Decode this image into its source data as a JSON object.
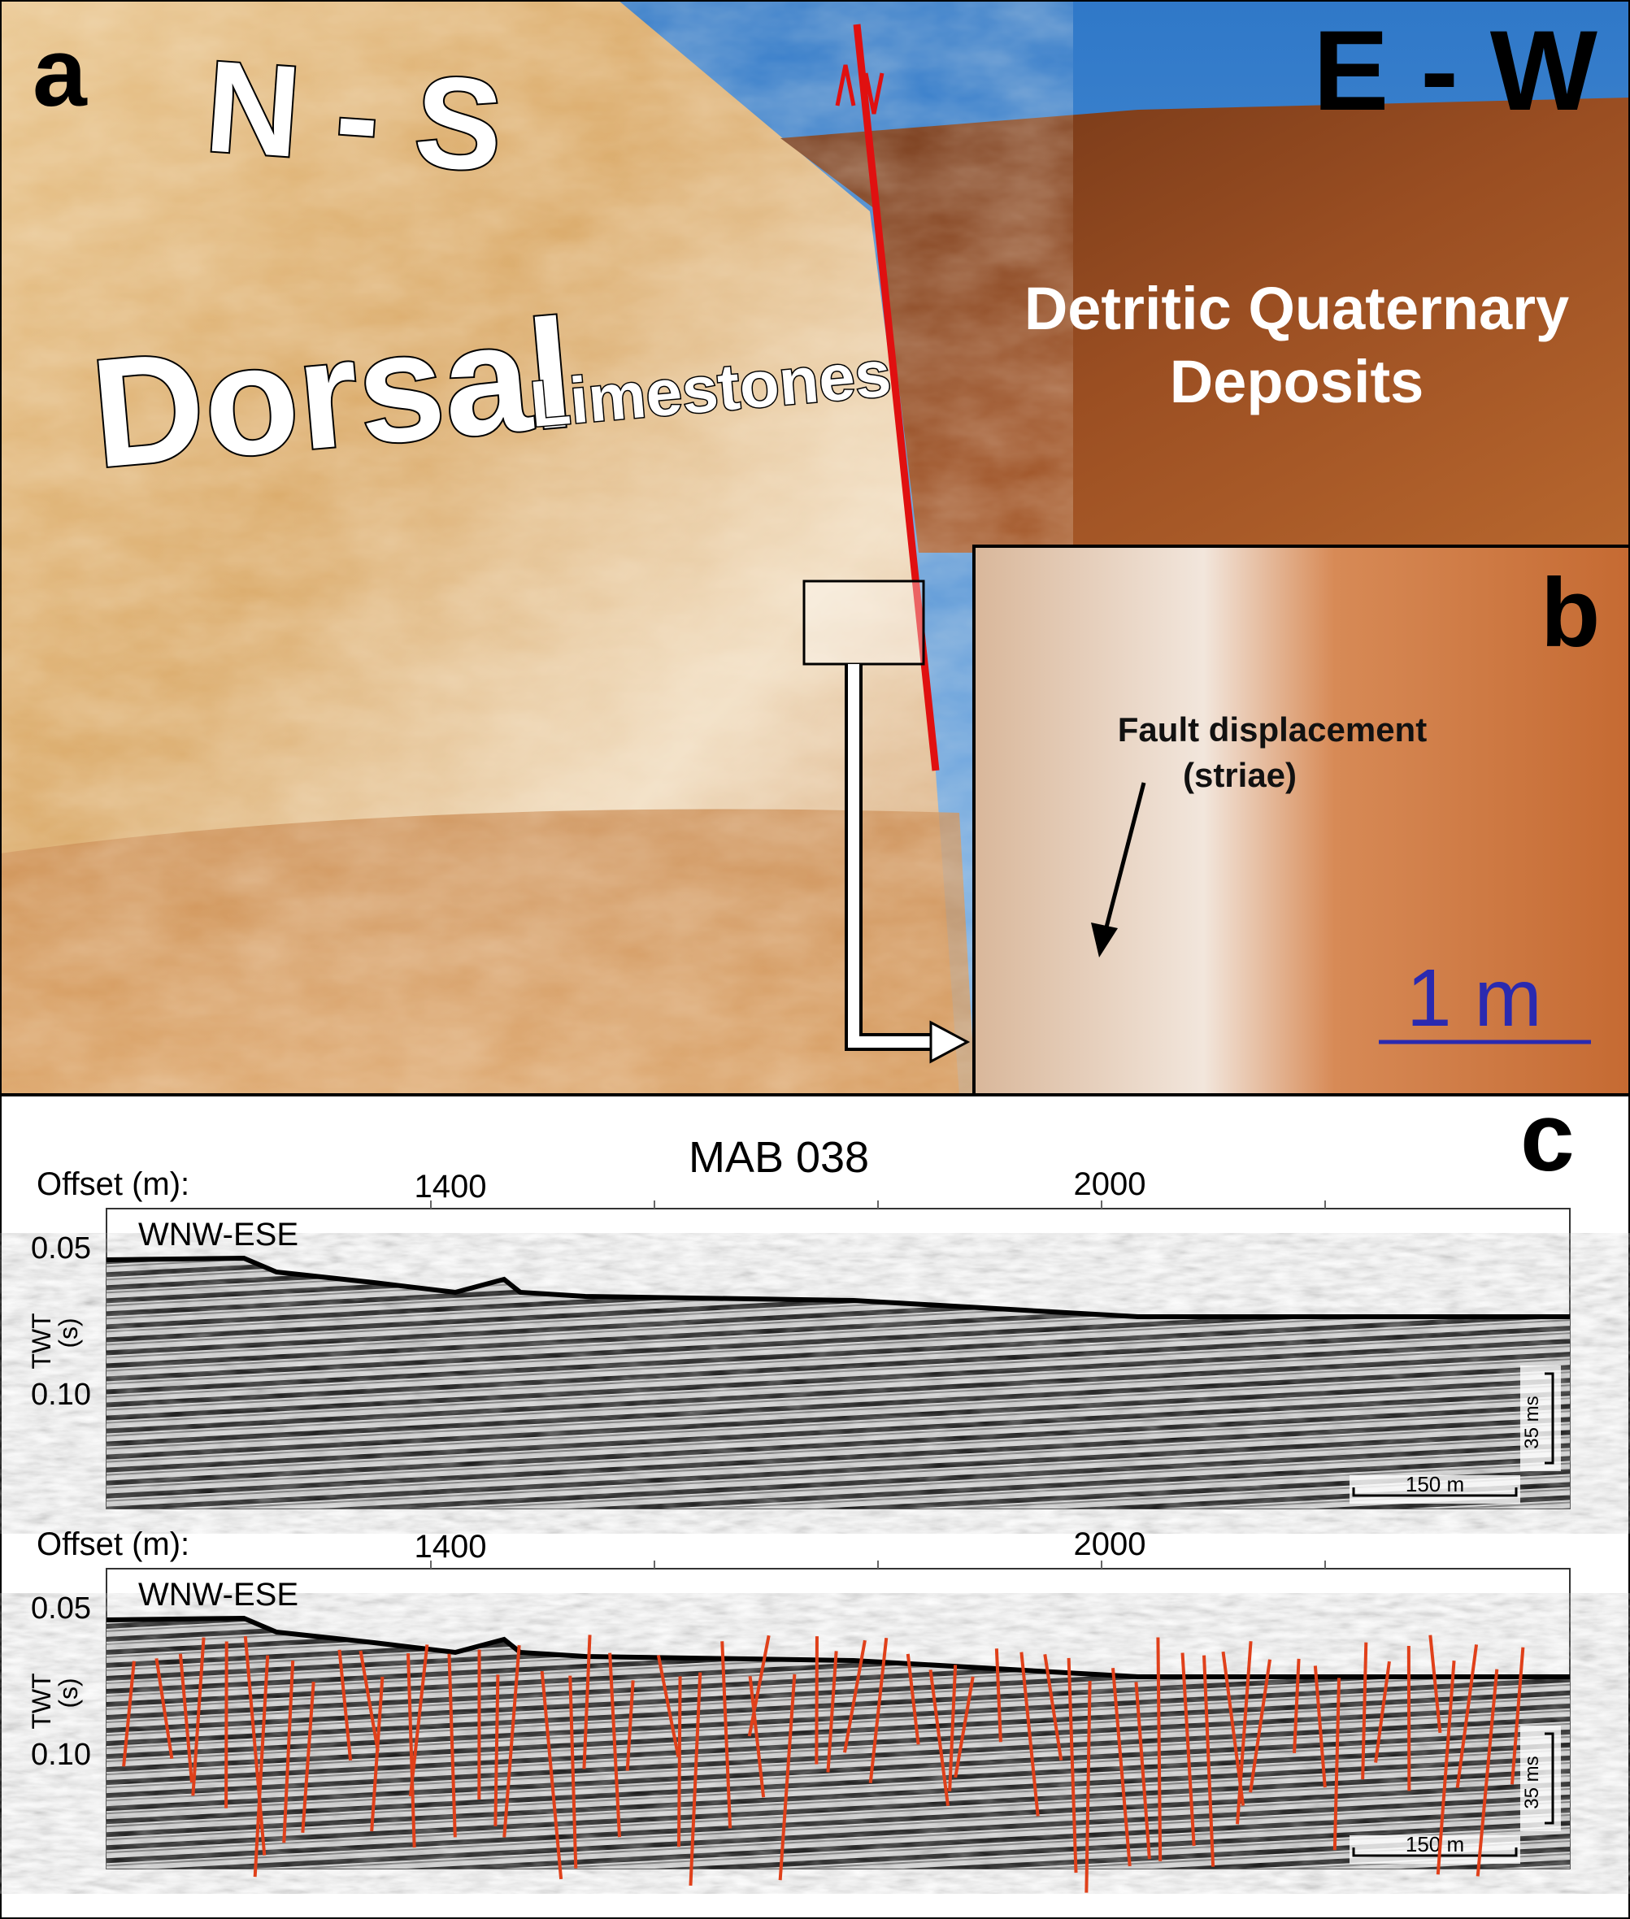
{
  "panel_a": {
    "label": "a",
    "left_direction": "N - S",
    "right_direction": "E - W",
    "left_unit": [
      "Dorsal",
      "Limestones"
    ],
    "right_unit": [
      "Detritic Quaternary",
      "Deposits"
    ]
  },
  "panel_b": {
    "label": "b",
    "annotation": [
      "Fault displacement",
      "(striae)"
    ],
    "scale": "1 m"
  },
  "panel_c": {
    "label": "c",
    "title": "MAB 038",
    "profiles": [
      {
        "offset_label": "Offset (m):",
        "offset_ticks": [
          "1400",
          "2000"
        ],
        "direction": "WNW-ESE",
        "twt_ticks": [
          "0.05",
          "0.10"
        ],
        "axis_label": [
          "TWT",
          "(s)"
        ],
        "time_scale": "35 ms",
        "distance_scale": "150 m"
      },
      {
        "offset_label": "Offset (m):",
        "offset_ticks": [
          "1400",
          "2000"
        ],
        "direction": "WNW-ESE",
        "twt_ticks": [
          "0.05",
          "0.10"
        ],
        "axis_label": [
          "TWT",
          "(s)"
        ],
        "time_scale": "35 ms",
        "distance_scale": "150 m"
      }
    ]
  }
}
